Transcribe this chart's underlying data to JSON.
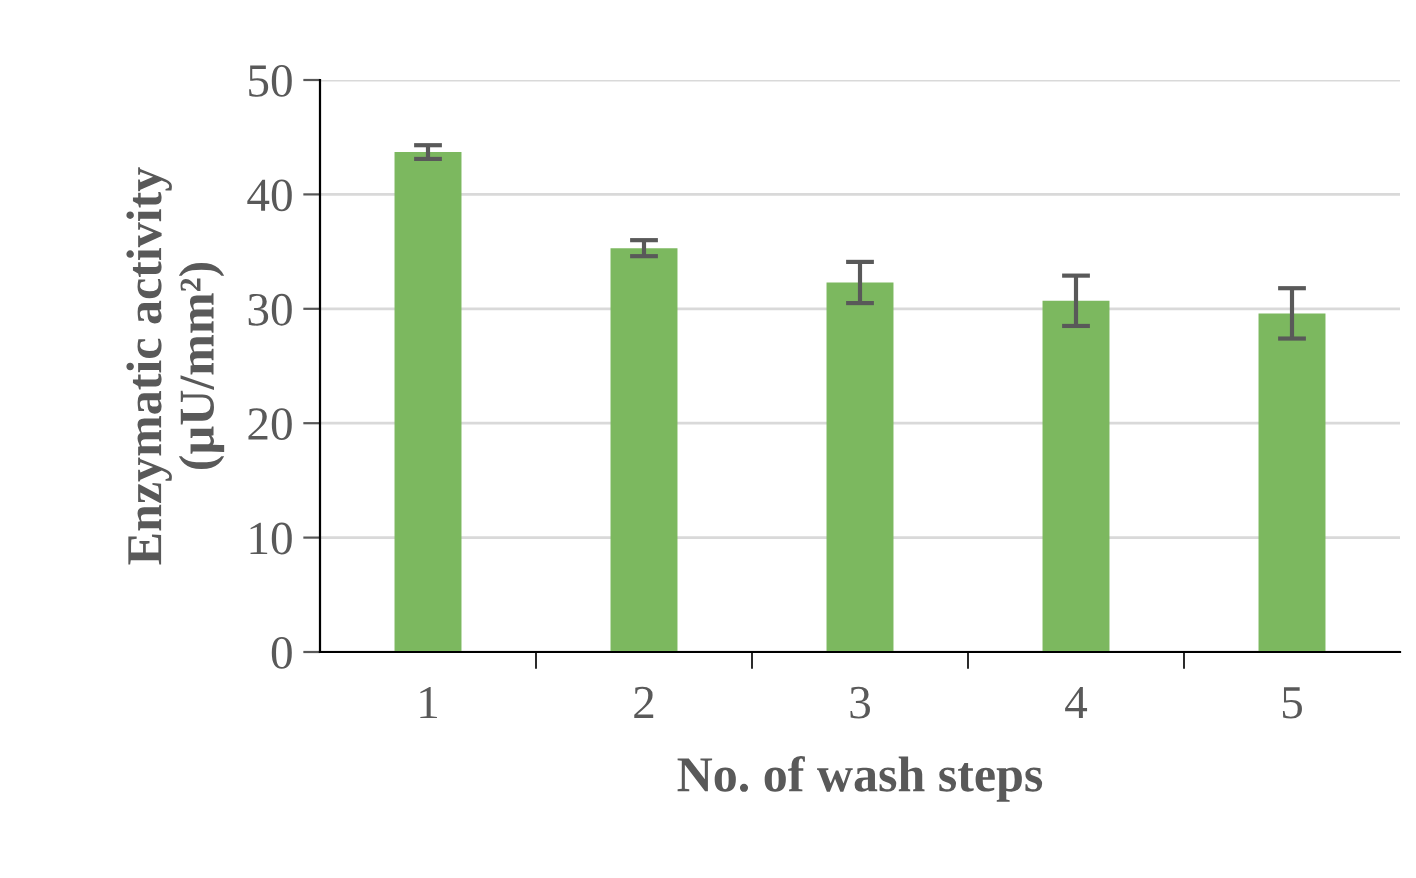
{
  "chart_data": {
    "type": "bar",
    "xlabel": "No. of wash steps",
    "ylabel": "Enzymatic activity\n(µU/mm²)",
    "categories": [
      "1",
      "2",
      "3",
      "4",
      "5"
    ],
    "values": [
      43.7,
      35.3,
      32.3,
      30.7,
      29.6
    ],
    "errors": [
      0.6,
      0.7,
      1.8,
      2.2,
      2.2
    ],
    "color": "#7cb85f",
    "ylim": [
      0,
      50
    ],
    "yticks": [
      0,
      10,
      20,
      30,
      40,
      50
    ],
    "grid": "y"
  }
}
